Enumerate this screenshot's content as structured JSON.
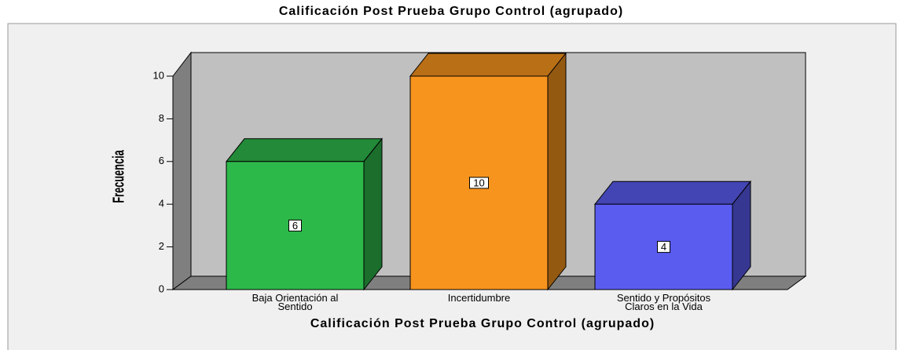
{
  "chart_data": {
    "type": "bar3d",
    "title": "Calificación Post Prueba Grupo Control (agrupado)",
    "x_label": "Calificación Post Prueba Grupo Control (agrupado)",
    "y_label": "Frecuencia",
    "categories": [
      "Baja Orientación al Sentido",
      "Incertidumbre",
      "Sentido y Propósitos Claros en la Vida"
    ],
    "values": [
      6,
      10,
      4
    ],
    "colors": [
      "#2db84a",
      "#f7941d",
      "#5a5cf0"
    ],
    "ylim": [
      0,
      10
    ],
    "yticks": [
      0,
      2,
      4,
      6,
      8,
      10
    ],
    "grid": false
  }
}
